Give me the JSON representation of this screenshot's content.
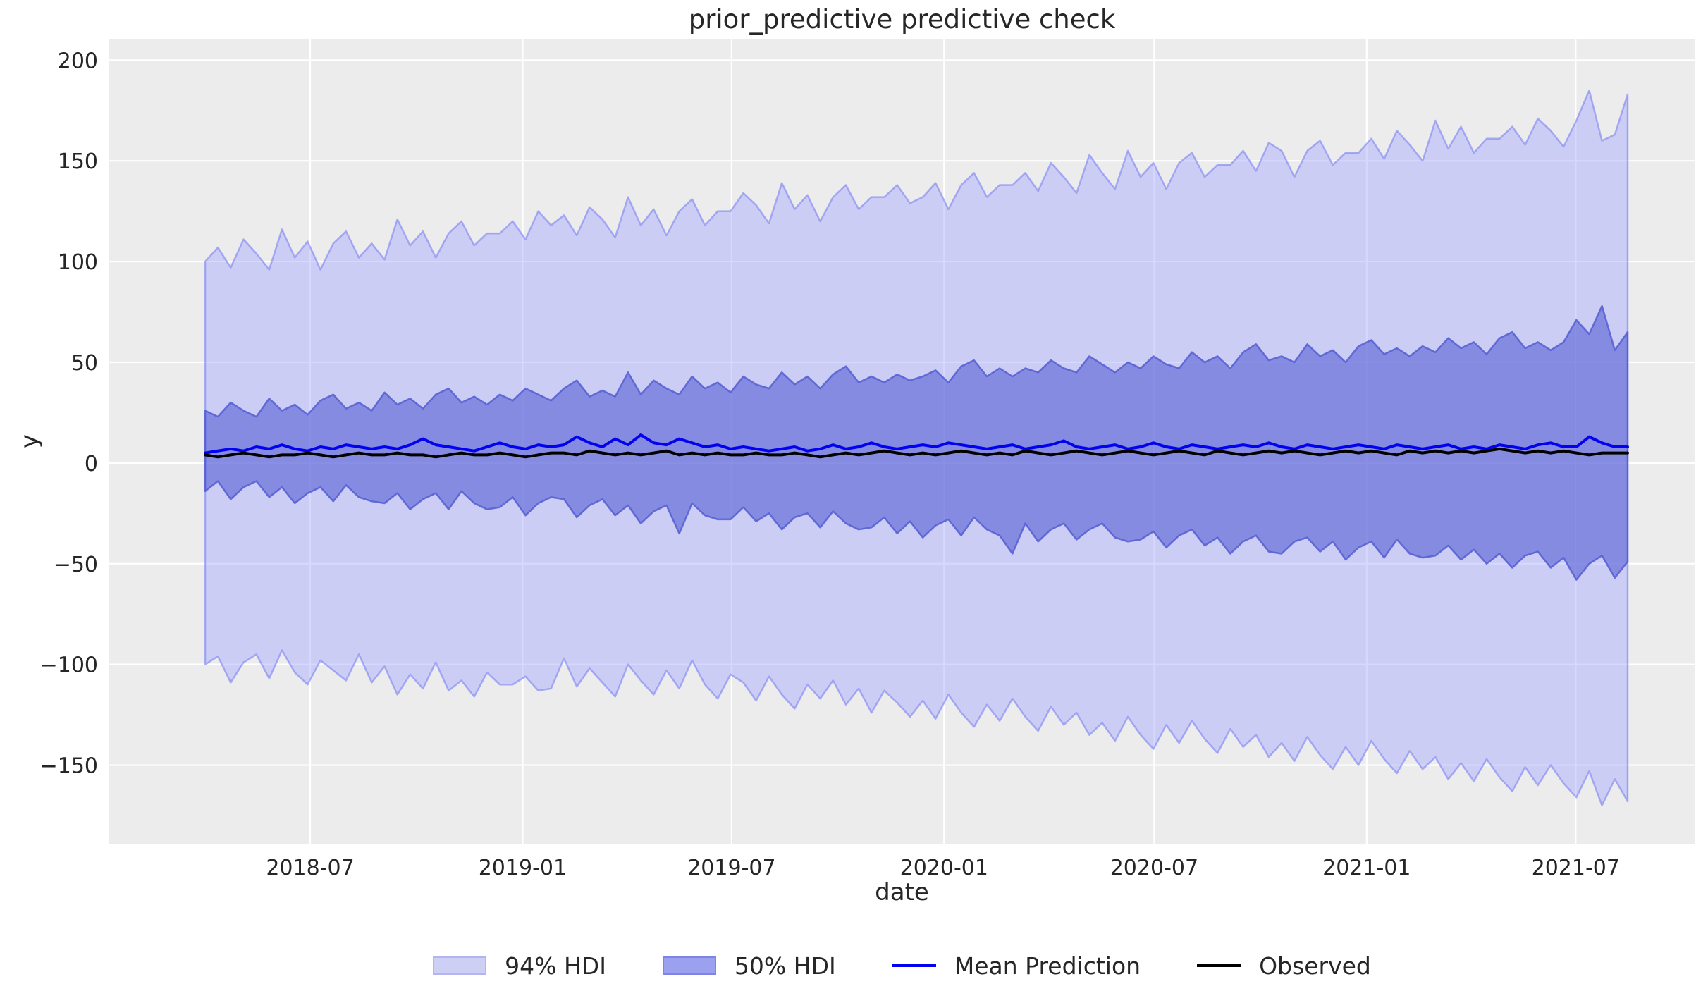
{
  "figure": {
    "title": "prior_predictive predictive check",
    "xlabel": "date",
    "ylabel": "y"
  },
  "legend": {
    "items": [
      {
        "label": "94% HDI",
        "kind": "patch",
        "swatch_fill": "#cdd0f4",
        "swatch_edge": "#b2b5ef"
      },
      {
        "label": "50% HDI",
        "kind": "patch",
        "swatch_fill": "#9ba1ee",
        "swatch_edge": "#7e84e6"
      },
      {
        "label": "Mean Prediction",
        "kind": "line",
        "swatch_color": "#0202f0"
      },
      {
        "label": "Observed",
        "kind": "line",
        "swatch_color": "#000000"
      }
    ]
  },
  "chart_data": {
    "type": "area",
    "title": "prior_predictive predictive check",
    "xlabel": "date",
    "ylabel": "y",
    "grid": true,
    "legend_position": "bottom",
    "colors": {
      "figure_bg": "#ffffff",
      "plot_bg": "#ececec",
      "grid": "#ffffff",
      "text": "#262626",
      "hdi94_fill": "rgba(158,162,254,0.42)",
      "hdi94_edge": "rgba(124,130,245,0.60)",
      "hdi50_fill": "rgba(95,105,215,0.66)",
      "hdi50_edge": "rgba(84,93,210,0.85)",
      "mean_line": "#0202f0",
      "observed_line": "#000000"
    },
    "xlim": [
      "2018-01-08",
      "2021-10-12"
    ],
    "ylim": [
      -189,
      210.6
    ],
    "x_start": "2018-04-01",
    "x_end": "2021-08-15",
    "n_points": 112,
    "xticks": [
      {
        "date": "2018-07-01",
        "label": "2018-07"
      },
      {
        "date": "2019-01-01",
        "label": "2019-01"
      },
      {
        "date": "2019-07-01",
        "label": "2019-07"
      },
      {
        "date": "2020-01-01",
        "label": "2020-01"
      },
      {
        "date": "2020-07-01",
        "label": "2020-07"
      },
      {
        "date": "2021-01-01",
        "label": "2021-01"
      },
      {
        "date": "2021-07-01",
        "label": "2021-07"
      }
    ],
    "yticks": [
      {
        "value": 200,
        "label": "200"
      },
      {
        "value": 150,
        "label": "150"
      },
      {
        "value": 100,
        "label": "100"
      },
      {
        "value": 50,
        "label": "50"
      },
      {
        "value": 0,
        "label": "0"
      },
      {
        "value": -50,
        "label": "−50"
      },
      {
        "value": -100,
        "label": "−100"
      },
      {
        "value": -150,
        "label": "−150"
      }
    ],
    "bands": [
      {
        "name": "94% HDI",
        "upper": [
          100,
          107,
          97,
          111,
          104,
          96,
          116,
          102,
          110,
          96,
          109,
          115,
          102,
          109,
          101,
          121,
          108,
          115,
          102,
          114,
          120,
          108,
          114,
          114,
          120,
          111,
          125,
          118,
          123,
          113,
          127,
          121,
          112,
          132,
          118,
          126,
          113,
          125,
          131,
          118,
          125,
          125,
          134,
          128,
          119,
          139,
          126,
          133,
          120,
          132,
          138,
          126,
          132,
          132,
          138,
          129,
          132,
          139,
          126,
          138,
          144,
          132,
          138,
          138,
          144,
          135,
          149,
          142,
          134,
          153,
          144,
          136,
          155,
          142,
          149,
          136,
          149,
          154,
          142,
          148,
          148,
          155,
          145,
          159,
          155,
          142,
          155,
          160,
          148,
          154,
          154,
          161,
          151,
          165,
          158,
          150,
          170,
          156,
          167,
          154,
          161,
          161,
          167,
          158,
          171,
          165,
          157,
          170,
          185,
          160,
          163,
          183
        ],
        "lower": [
          -100,
          -96,
          -109,
          -99,
          -95,
          -107,
          -93,
          -104,
          -110,
          -98,
          -103,
          -108,
          -95,
          -109,
          -101,
          -115,
          -105,
          -112,
          -99,
          -113,
          -108,
          -116,
          -104,
          -110,
          -110,
          -106,
          -113,
          -112,
          -97,
          -111,
          -102,
          -109,
          -116,
          -100,
          -108,
          -115,
          -103,
          -112,
          -98,
          -110,
          -117,
          -105,
          -109,
          -118,
          -106,
          -115,
          -122,
          -110,
          -117,
          -108,
          -120,
          -112,
          -124,
          -113,
          -119,
          -126,
          -118,
          -127,
          -115,
          -124,
          -131,
          -120,
          -128,
          -117,
          -126,
          -133,
          -121,
          -130,
          -124,
          -135,
          -129,
          -138,
          -126,
          -135,
          -142,
          -130,
          -139,
          -128,
          -137,
          -144,
          -132,
          -141,
          -135,
          -146,
          -139,
          -148,
          -136,
          -145,
          -152,
          -141,
          -150,
          -138,
          -147,
          -154,
          -143,
          -152,
          -146,
          -157,
          -149,
          -158,
          -147,
          -156,
          -163,
          -151,
          -160,
          -150,
          -159,
          -166,
          -153,
          -170,
          -157,
          -168
        ]
      },
      {
        "name": "50% HDI",
        "upper": [
          26,
          23,
          30,
          26,
          23,
          32,
          26,
          29,
          24,
          31,
          34,
          27,
          30,
          26,
          35,
          29,
          32,
          27,
          34,
          37,
          30,
          33,
          29,
          34,
          31,
          37,
          34,
          31,
          37,
          41,
          33,
          36,
          33,
          45,
          34,
          41,
          37,
          34,
          43,
          37,
          40,
          35,
          43,
          39,
          37,
          45,
          39,
          43,
          37,
          44,
          48,
          40,
          43,
          40,
          44,
          41,
          43,
          46,
          40,
          48,
          51,
          43,
          47,
          43,
          47,
          45,
          51,
          47,
          45,
          53,
          49,
          45,
          50,
          47,
          53,
          49,
          47,
          55,
          50,
          53,
          47,
          55,
          59,
          51,
          53,
          50,
          59,
          53,
          56,
          50,
          58,
          61,
          54,
          57,
          53,
          58,
          55,
          62,
          57,
          60,
          54,
          62,
          65,
          57,
          60,
          56,
          60,
          71,
          64,
          78,
          56,
          65
        ],
        "lower": [
          -14,
          -9,
          -18,
          -12,
          -9,
          -17,
          -12,
          -20,
          -15,
          -12,
          -19,
          -11,
          -17,
          -19,
          -20,
          -15,
          -23,
          -18,
          -15,
          -23,
          -14,
          -20,
          -23,
          -22,
          -17,
          -26,
          -20,
          -17,
          -18,
          -27,
          -21,
          -18,
          -26,
          -21,
          -30,
          -24,
          -21,
          -35,
          -20,
          -26,
          -28,
          -28,
          -22,
          -29,
          -25,
          -33,
          -27,
          -25,
          -32,
          -24,
          -30,
          -33,
          -32,
          -27,
          -35,
          -29,
          -37,
          -31,
          -28,
          -36,
          -27,
          -33,
          -36,
          -45,
          -30,
          -39,
          -33,
          -30,
          -38,
          -33,
          -30,
          -37,
          -39,
          -38,
          -34,
          -42,
          -36,
          -33,
          -41,
          -37,
          -45,
          -39,
          -36,
          -44,
          -45,
          -39,
          -37,
          -44,
          -39,
          -48,
          -42,
          -39,
          -47,
          -38,
          -45,
          -47,
          -46,
          -41,
          -48,
          -43,
          -50,
          -45,
          -52,
          -46,
          -44,
          -52,
          -47,
          -58,
          -50,
          -46,
          -57,
          -49
        ]
      }
    ],
    "series": [
      {
        "name": "Mean Prediction",
        "values": [
          5,
          6,
          7,
          6,
          8,
          7,
          9,
          7,
          6,
          8,
          7,
          9,
          8,
          7,
          8,
          7,
          9,
          12,
          9,
          8,
          7,
          6,
          8,
          10,
          8,
          7,
          9,
          8,
          9,
          13,
          10,
          8,
          12,
          9,
          14,
          10,
          9,
          12,
          10,
          8,
          9,
          7,
          8,
          7,
          6,
          7,
          8,
          6,
          7,
          9,
          7,
          8,
          10,
          8,
          7,
          8,
          9,
          8,
          10,
          9,
          8,
          7,
          8,
          9,
          7,
          8,
          9,
          11,
          8,
          7,
          8,
          9,
          7,
          8,
          10,
          8,
          7,
          9,
          8,
          7,
          8,
          9,
          8,
          10,
          8,
          7,
          9,
          8,
          7,
          8,
          9,
          8,
          7,
          9,
          8,
          7,
          8,
          9,
          7,
          8,
          7,
          9,
          8,
          7,
          9,
          10,
          8,
          8,
          13,
          10,
          8,
          8
        ]
      },
      {
        "name": "Observed",
        "values": [
          4,
          3,
          4,
          5,
          4,
          3,
          4,
          4,
          5,
          4,
          3,
          4,
          5,
          4,
          4,
          5,
          4,
          4,
          3,
          4,
          5,
          4,
          4,
          5,
          4,
          3,
          4,
          5,
          5,
          4,
          6,
          5,
          4,
          5,
          4,
          5,
          6,
          4,
          5,
          4,
          5,
          4,
          4,
          5,
          4,
          4,
          5,
          4,
          3,
          4,
          5,
          4,
          5,
          6,
          5,
          4,
          5,
          4,
          5,
          6,
          5,
          4,
          5,
          4,
          6,
          5,
          4,
          5,
          6,
          5,
          4,
          5,
          6,
          5,
          4,
          5,
          6,
          5,
          4,
          6,
          5,
          4,
          5,
          6,
          5,
          6,
          5,
          4,
          5,
          6,
          5,
          6,
          5,
          4,
          6,
          5,
          6,
          5,
          6,
          5,
          6,
          7,
          6,
          5,
          6,
          5,
          6,
          5,
          4,
          5,
          5,
          5
        ]
      }
    ]
  }
}
